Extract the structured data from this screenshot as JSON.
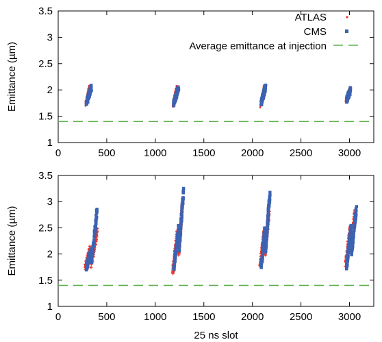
{
  "chart_data": [
    {
      "type": "scatter",
      "title": "",
      "xlabel": "",
      "ylabel": "Emittance (µm)",
      "xlim": [
        0,
        3250
      ],
      "ylim": [
        1,
        3.5
      ],
      "xticks": [
        0,
        500,
        1000,
        1500,
        2000,
        2500,
        3000
      ],
      "yticks": [
        1,
        1.5,
        2,
        2.5,
        3,
        3.5
      ],
      "legend_position": "top-right",
      "reference_line": {
        "name": "Average emittance at injection",
        "y": 1.4,
        "color": "#5fb04e",
        "style": "dashed"
      },
      "series": [
        {
          "name": "ATLAS",
          "color": "#e8322a",
          "marker": "dot",
          "trains": [
            {
              "x_start": 280,
              "x_end": 320,
              "y_start": 1.72,
              "y_end": 2.05
            },
            {
              "x_start": 1180,
              "x_end": 1220,
              "y_start": 1.7,
              "y_end": 2.05
            },
            {
              "x_start": 2080,
              "x_end": 2120,
              "y_start": 1.7,
              "y_end": 2.05
            },
            {
              "x_start": 2960,
              "x_end": 3000,
              "y_start": 1.78,
              "y_end": 2.0
            }
          ]
        },
        {
          "name": "CMS",
          "color": "#3c62b0",
          "marker": "square",
          "trains": [
            {
              "x_start": 290,
              "x_end": 340,
              "y_start": 1.75,
              "y_end": 2.05
            },
            {
              "x_start": 1190,
              "x_end": 1240,
              "y_start": 1.75,
              "y_end": 2.05
            },
            {
              "x_start": 2090,
              "x_end": 2135,
              "y_start": 1.75,
              "y_end": 2.05
            },
            {
              "x_start": 2970,
              "x_end": 3010,
              "y_start": 1.8,
              "y_end": 2.0
            }
          ]
        }
      ]
    },
    {
      "type": "scatter",
      "title": "",
      "xlabel": "25 ns slot",
      "ylabel": "Emittance (µm)",
      "xlim": [
        0,
        3250
      ],
      "ylim": [
        1,
        3.5
      ],
      "xticks": [
        0,
        500,
        1000,
        1500,
        2000,
        2500,
        3000
      ],
      "yticks": [
        1,
        1.5,
        2,
        2.5,
        3,
        3.5
      ],
      "reference_line": {
        "name": "Average emittance at injection",
        "y": 1.4,
        "color": "#5fb04e",
        "style": "dashed"
      },
      "series": [
        {
          "name": "ATLAS",
          "color": "#e8322a",
          "marker": "plus",
          "trains": [
            {
              "x_start": 280,
              "x_end": 330,
              "y_start": 1.75,
              "y_end": 2.1
            },
            {
              "x_start": 340,
              "x_end": 400,
              "y_start": 1.8,
              "y_end": 2.45
            },
            {
              "x_start": 1180,
              "x_end": 1230,
              "y_start": 1.65,
              "y_end": 2.45
            },
            {
              "x_start": 1240,
              "x_end": 1280,
              "y_start": 2.0,
              "y_end": 2.95
            },
            {
              "x_start": 2080,
              "x_end": 2120,
              "y_start": 1.75,
              "y_end": 2.4
            },
            {
              "x_start": 2130,
              "x_end": 2170,
              "y_start": 2.0,
              "y_end": 2.8
            },
            {
              "x_start": 2960,
              "x_end": 3010,
              "y_start": 1.8,
              "y_end": 2.5
            },
            {
              "x_start": 3020,
              "x_end": 3060,
              "y_start": 2.1,
              "y_end": 2.85
            }
          ]
        },
        {
          "name": "CMS",
          "color": "#3c62b0",
          "marker": "square",
          "trains": [
            {
              "x_start": 290,
              "x_end": 340,
              "y_start": 1.75,
              "y_end": 2.05
            },
            {
              "x_start": 345,
              "x_end": 400,
              "y_start": 1.85,
              "y_end": 2.85
            },
            {
              "x_start": 1190,
              "x_end": 1240,
              "y_start": 1.7,
              "y_end": 2.5
            },
            {
              "x_start": 1245,
              "x_end": 1290,
              "y_start": 2.1,
              "y_end": 3.2
            },
            {
              "x_start": 2090,
              "x_end": 2130,
              "y_start": 1.75,
              "y_end": 2.5
            },
            {
              "x_start": 2135,
              "x_end": 2180,
              "y_start": 2.05,
              "y_end": 3.15
            },
            {
              "x_start": 2970,
              "x_end": 3015,
              "y_start": 1.75,
              "y_end": 2.5
            },
            {
              "x_start": 3020,
              "x_end": 3070,
              "y_start": 2.0,
              "y_end": 2.85
            }
          ]
        }
      ]
    }
  ]
}
